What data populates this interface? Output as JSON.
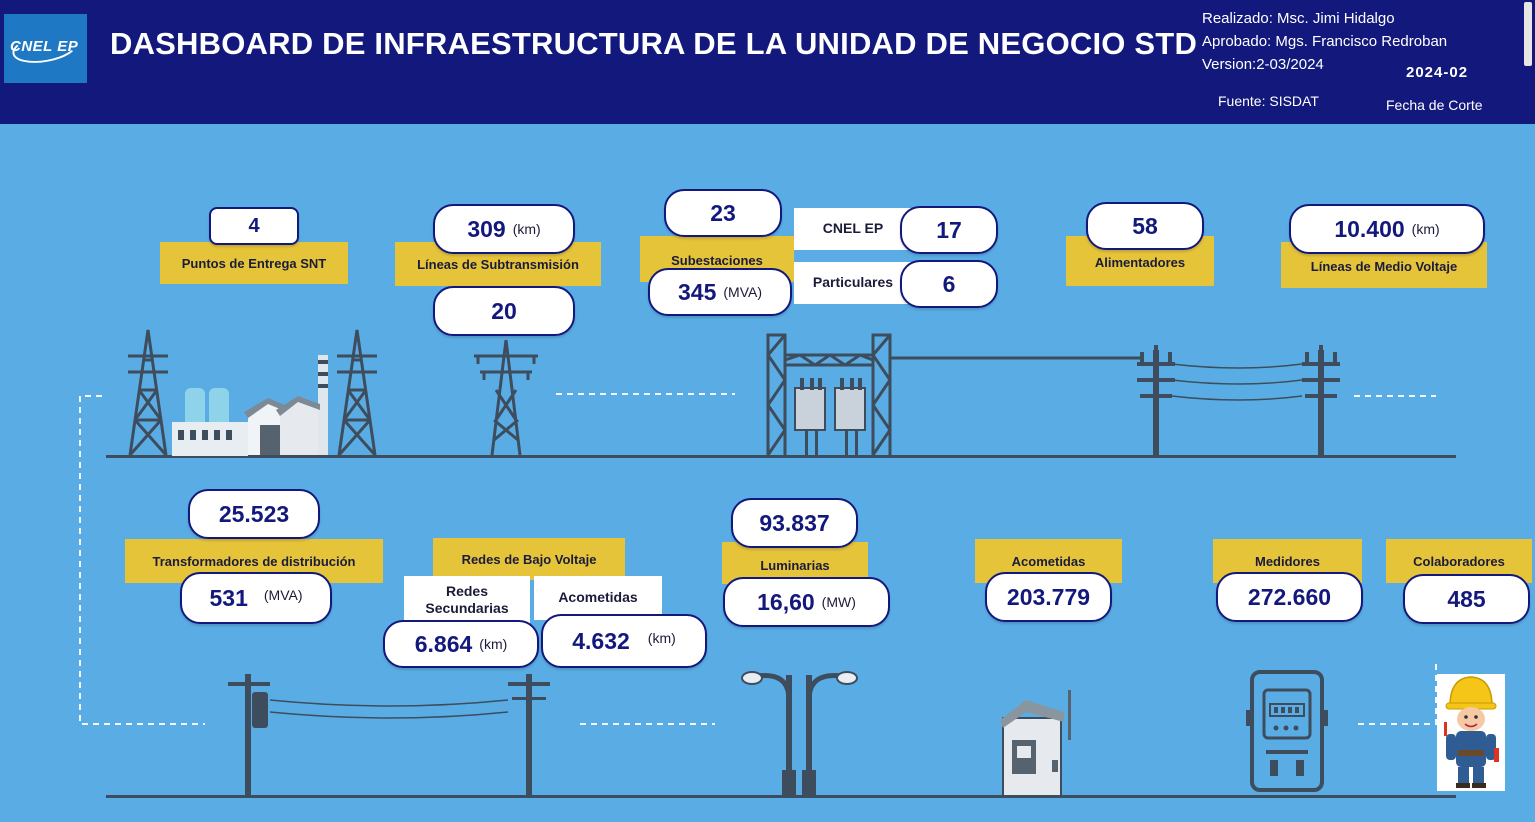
{
  "header": {
    "logo_text": "CNEL EP",
    "title": "DASHBOARD DE INFRAESTRUCTURA DE LA UNIDAD DE NEGOCIO STD",
    "realizado": "Realizado: Msc. Jimi Hidalgo",
    "aprobado": "Aprobado: Mgs. Francisco Redroban",
    "version": "Version:2-03/2024",
    "period": "2024-02",
    "fuente": "Fuente: SISDAT",
    "fecha_corte": "Fecha de Corte"
  },
  "top": {
    "puntos": {
      "label": "Puntos de Entrega SNT",
      "value": "4"
    },
    "lineas_sub": {
      "label": "Líneas de Subtransmisión",
      "value_km": "309",
      "unit_km": "(km)",
      "value_count": "20"
    },
    "subestaciones": {
      "label": "Subestaciones",
      "value": "23",
      "mva": "345",
      "unit_mva": "(MVA)",
      "cnel_label": "CNEL EP",
      "cnel_value": "17",
      "part_label": "Particulares",
      "part_value": "6"
    },
    "alimentadores": {
      "label": "Alimentadores",
      "value": "58"
    },
    "medio_voltaje": {
      "label": "Líneas de Medio Voltaje",
      "value": "10.400",
      "unit": "(km)"
    }
  },
  "bottom": {
    "transformadores": {
      "label": "Transformadores de distribución",
      "value": "25.523",
      "mva": "531",
      "unit_mva": "(MVA)"
    },
    "bajo_voltaje": {
      "label": "Redes de Bajo Voltaje",
      "sec_label": "Redes Secundarias",
      "sec_value": "6.864",
      "sec_unit": "(km)",
      "acom_label": "Acometidas",
      "acom_value": "4.632",
      "acom_unit": "(km)"
    },
    "luminarias": {
      "label": "Luminarias",
      "value": "93.837",
      "mw": "16,60",
      "unit_mw": "(MW)"
    },
    "acometidas": {
      "label": "Acometidas",
      "value": "203.779"
    },
    "medidores": {
      "label": "Medidores",
      "value": "272.660"
    },
    "colaboradores": {
      "label": "Colaboradores",
      "value": "485"
    }
  },
  "icons": [
    "power-plant-icon",
    "transmission-tower-icon",
    "substation-icon",
    "utility-pole-icon",
    "transformer-pole-icon",
    "street-light-icon",
    "meter-box-icon",
    "electric-meter-icon",
    "worker-icon"
  ],
  "colors": {
    "header_bg": "#13197c",
    "page_bg": "#5aade4",
    "label_bg": "#e5c43a",
    "value_text": "#13197c"
  }
}
